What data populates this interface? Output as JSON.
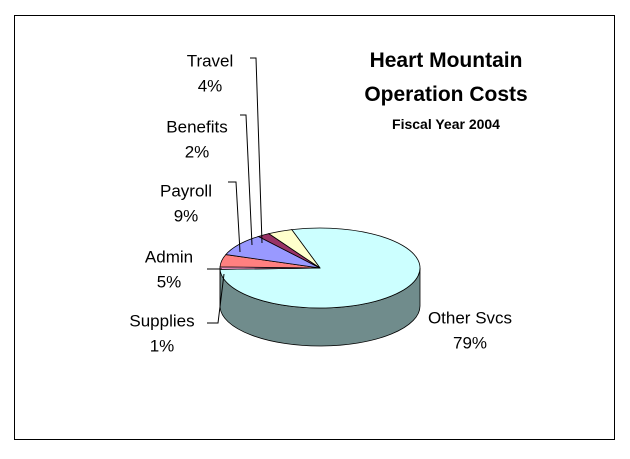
{
  "chart_data": {
    "type": "pie",
    "title": "Heart Mountain Operation Costs",
    "subtitle": "Fiscal Year 2004",
    "categories": [
      "Other Svcs",
      "Supplies",
      "Admin",
      "Payroll",
      "Benefits",
      "Travel"
    ],
    "values": [
      79,
      1,
      5,
      9,
      2,
      4
    ],
    "value_labels": [
      "79%",
      "1%",
      "5%",
      "9%",
      "2%",
      "4%"
    ],
    "colors": [
      "#ccffff",
      "#ff99cc",
      "#ff8080",
      "#9999ff",
      "#993366",
      "#ffffcc"
    ]
  }
}
